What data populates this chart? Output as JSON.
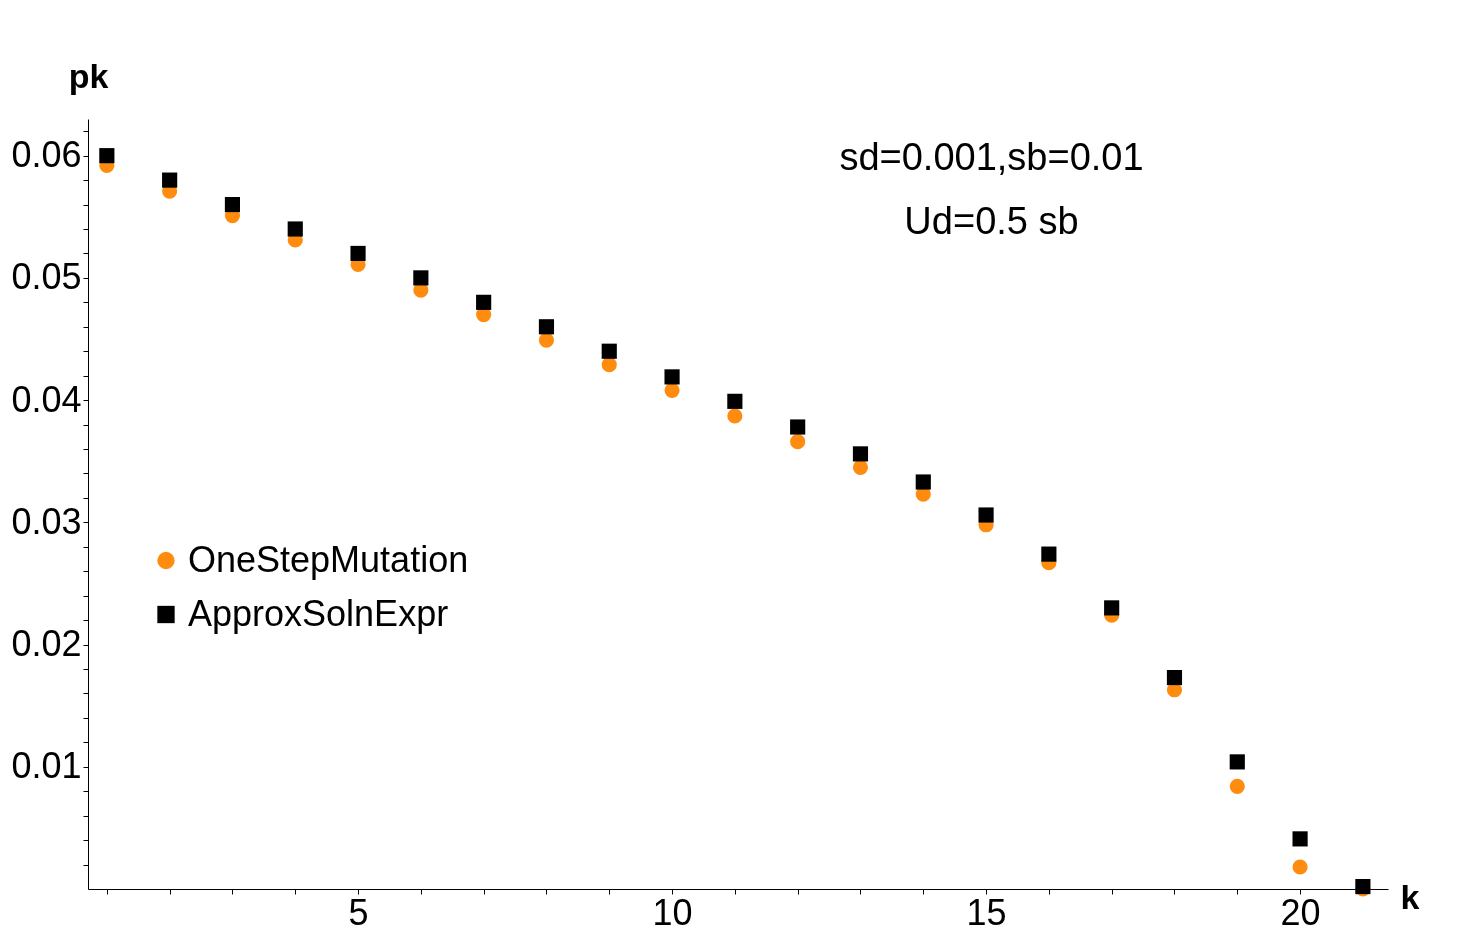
{
  "chart_data": {
    "type": "scatter",
    "xlabel": "k",
    "ylabel": "pk",
    "annotations": [
      "sd=0.001,sb=0.01",
      "Ud=0.5 sb"
    ],
    "x": [
      1,
      2,
      3,
      4,
      5,
      6,
      7,
      8,
      9,
      10,
      11,
      12,
      13,
      14,
      15,
      16,
      17,
      18,
      19,
      20,
      21
    ],
    "series": [
      {
        "name": "OneStepMutation",
        "color": "#ff8c0f",
        "marker": "circle",
        "values": [
          0.0592,
          0.0571,
          0.0551,
          0.0531,
          0.0511,
          0.049,
          0.047,
          0.0449,
          0.0429,
          0.0408,
          0.0387,
          0.0366,
          0.0345,
          0.0323,
          0.0298,
          0.0267,
          0.0224,
          0.0163,
          0.0084,
          0.0018,
          0.0
        ]
      },
      {
        "name": "ApproxSolnExpr",
        "color": "#000000",
        "marker": "square",
        "values": [
          0.06,
          0.058,
          0.056,
          0.054,
          0.052,
          0.05,
          0.048,
          0.046,
          0.044,
          0.0419,
          0.0399,
          0.0378,
          0.0356,
          0.0333,
          0.0306,
          0.0274,
          0.023,
          0.0173,
          0.0104,
          0.0041,
          0.0002
        ]
      }
    ],
    "xlim": [
      0.7,
      21.4
    ],
    "xticks": [
      {
        "value": 1,
        "label": null
      },
      {
        "value": 2,
        "label": null
      },
      {
        "value": 3,
        "label": null
      },
      {
        "value": 4,
        "label": null
      },
      5,
      {
        "value": 6,
        "label": null
      },
      {
        "value": 7,
        "label": null
      },
      {
        "value": 8,
        "label": null
      },
      {
        "value": 9,
        "label": null
      },
      10,
      {
        "value": 11,
        "label": null
      },
      {
        "value": 12,
        "label": null
      },
      {
        "value": 13,
        "label": null
      },
      {
        "value": 14,
        "label": null
      },
      15,
      {
        "value": 16,
        "label": null
      },
      {
        "value": 17,
        "label": null
      },
      {
        "value": 18,
        "label": null
      },
      {
        "value": 19,
        "label": null
      },
      20,
      {
        "value": 21,
        "label": null
      }
    ],
    "ylim": [
      0,
      0.063
    ],
    "yticks": [
      {
        "value": 0.002,
        "label": null
      },
      {
        "value": 0.004,
        "label": null
      },
      {
        "value": 0.006,
        "label": null
      },
      {
        "value": 0.008,
        "label": null
      },
      0.01,
      {
        "value": 0.012,
        "label": null
      },
      {
        "value": 0.014,
        "label": null
      },
      {
        "value": 0.016,
        "label": null
      },
      {
        "value": 0.018,
        "label": null
      },
      0.02,
      {
        "value": 0.022,
        "label": null
      },
      {
        "value": 0.024,
        "label": null
      },
      {
        "value": 0.026,
        "label": null
      },
      {
        "value": 0.028,
        "label": null
      },
      0.03,
      {
        "value": 0.032,
        "label": null
      },
      {
        "value": 0.034,
        "label": null
      },
      {
        "value": 0.036,
        "label": null
      },
      {
        "value": 0.038,
        "label": null
      },
      0.04,
      {
        "value": 0.042,
        "label": null
      },
      {
        "value": 0.044,
        "label": null
      },
      {
        "value": 0.046,
        "label": null
      },
      {
        "value": 0.048,
        "label": null
      },
      0.05,
      {
        "value": 0.052,
        "label": null
      },
      {
        "value": 0.054,
        "label": null
      },
      {
        "value": 0.056,
        "label": null
      },
      {
        "value": 0.058,
        "label": null
      },
      0.06,
      {
        "value": 0.062,
        "label": null
      }
    ],
    "grid": false,
    "legend": "left"
  }
}
